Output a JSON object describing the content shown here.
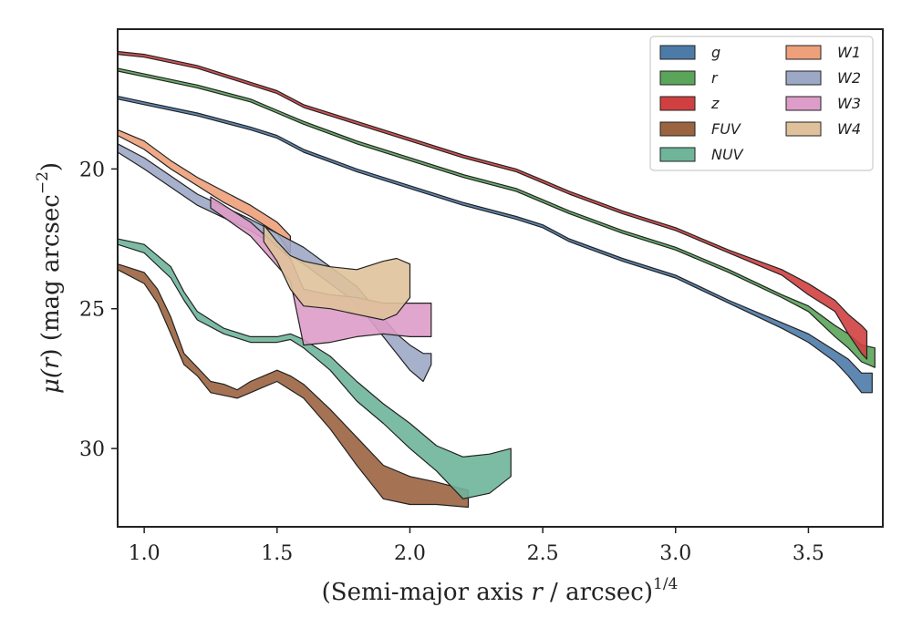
{
  "chart_data": {
    "type": "area",
    "xlabel": "(Semi-major axis r / arcsec)",
    "xlabel_parts": {
      "pre": "(Semi-major axis ",
      "var": "r",
      "post": " / arcsec)",
      "sup": "1/4"
    },
    "ylabel_parts": {
      "pre": "μ(",
      "var": "r",
      "post": ") (mag arcsec",
      "sup": "−2",
      "end": ")"
    },
    "xlim": [
      0.9,
      3.78
    ],
    "ylim": [
      32.8,
      15.0
    ],
    "y_inverted": true,
    "xticks": [
      {
        "value": 1.0,
        "label": "1.0"
      },
      {
        "value": 1.5,
        "label": "1.5"
      },
      {
        "value": 2.0,
        "label": "2.0"
      },
      {
        "value": 2.5,
        "label": "2.5"
      },
      {
        "value": 3.0,
        "label": "3.0"
      },
      {
        "value": 3.5,
        "label": "3.5"
      }
    ],
    "yticks": [
      {
        "value": 20,
        "label": "20"
      },
      {
        "value": 25,
        "label": "25"
      },
      {
        "value": 30,
        "label": "30"
      }
    ],
    "grid": false,
    "legend_position": "top-right",
    "legend_columns": 2,
    "series": [
      {
        "name": "g",
        "color": "#4c7ba8",
        "points": [
          [
            0.9,
            17.4,
            17.5
          ],
          [
            1.0,
            17.6,
            17.7
          ],
          [
            1.2,
            18.0,
            18.1
          ],
          [
            1.4,
            18.5,
            18.6
          ],
          [
            1.5,
            18.8,
            18.9
          ],
          [
            1.6,
            19.3,
            19.4
          ],
          [
            1.8,
            20.0,
            20.1
          ],
          [
            2.0,
            20.6,
            20.7
          ],
          [
            2.2,
            21.2,
            21.3
          ],
          [
            2.4,
            21.7,
            21.8
          ],
          [
            2.5,
            22.0,
            22.1
          ],
          [
            2.6,
            22.5,
            22.6
          ],
          [
            2.8,
            23.2,
            23.3
          ],
          [
            3.0,
            23.8,
            23.9
          ],
          [
            3.2,
            24.7,
            24.8
          ],
          [
            3.4,
            25.5,
            25.7
          ],
          [
            3.5,
            25.9,
            26.2
          ],
          [
            3.6,
            26.5,
            26.9
          ],
          [
            3.65,
            26.8,
            27.4
          ],
          [
            3.7,
            27.3,
            28.0
          ],
          [
            3.74,
            27.3,
            28.0
          ]
        ]
      },
      {
        "name": "r",
        "color": "#5aa55a",
        "points": [
          [
            0.9,
            16.4,
            16.5
          ],
          [
            1.0,
            16.6,
            16.7
          ],
          [
            1.2,
            17.0,
            17.1
          ],
          [
            1.4,
            17.5,
            17.6
          ],
          [
            1.5,
            17.9,
            18.0
          ],
          [
            1.6,
            18.3,
            18.4
          ],
          [
            1.8,
            19.0,
            19.1
          ],
          [
            2.0,
            19.6,
            19.7
          ],
          [
            2.2,
            20.2,
            20.3
          ],
          [
            2.4,
            20.7,
            20.8
          ],
          [
            2.5,
            21.1,
            21.2
          ],
          [
            2.6,
            21.5,
            21.6
          ],
          [
            2.8,
            22.2,
            22.3
          ],
          [
            3.0,
            22.8,
            22.9
          ],
          [
            3.2,
            23.6,
            23.7
          ],
          [
            3.4,
            24.5,
            24.6
          ],
          [
            3.5,
            24.9,
            25.1
          ],
          [
            3.6,
            25.6,
            26.0
          ],
          [
            3.65,
            25.9,
            26.4
          ],
          [
            3.7,
            26.3,
            26.9
          ],
          [
            3.75,
            26.4,
            27.1
          ]
        ]
      },
      {
        "name": "z",
        "color": "#d04040",
        "points": [
          [
            0.9,
            15.8,
            15.9
          ],
          [
            1.0,
            15.9,
            16.0
          ],
          [
            1.2,
            16.3,
            16.4
          ],
          [
            1.4,
            16.9,
            17.0
          ],
          [
            1.5,
            17.2,
            17.3
          ],
          [
            1.6,
            17.7,
            17.8
          ],
          [
            1.8,
            18.3,
            18.4
          ],
          [
            2.0,
            18.9,
            19.0
          ],
          [
            2.2,
            19.5,
            19.6
          ],
          [
            2.4,
            20.0,
            20.1
          ],
          [
            2.5,
            20.4,
            20.5
          ],
          [
            2.6,
            20.8,
            20.9
          ],
          [
            2.8,
            21.5,
            21.6
          ],
          [
            3.0,
            22.1,
            22.2
          ],
          [
            3.2,
            22.9,
            23.0
          ],
          [
            3.4,
            23.6,
            23.8
          ],
          [
            3.5,
            24.1,
            24.5
          ],
          [
            3.6,
            24.7,
            25.1
          ],
          [
            3.65,
            25.2,
            25.9
          ],
          [
            3.7,
            25.6,
            26.6
          ],
          [
            3.72,
            25.8,
            26.8
          ]
        ]
      },
      {
        "name": "FUV",
        "color": "#9b6440",
        "points": [
          [
            0.9,
            23.4,
            23.6
          ],
          [
            1.0,
            23.7,
            24.1
          ],
          [
            1.05,
            24.3,
            24.8
          ],
          [
            1.1,
            25.3,
            25.9
          ],
          [
            1.15,
            26.6,
            27.0
          ],
          [
            1.2,
            27.1,
            27.4
          ],
          [
            1.25,
            27.6,
            28.0
          ],
          [
            1.3,
            27.7,
            28.1
          ],
          [
            1.35,
            27.9,
            28.2
          ],
          [
            1.4,
            27.6,
            28.0
          ],
          [
            1.45,
            27.4,
            27.8
          ],
          [
            1.5,
            27.2,
            27.6
          ],
          [
            1.55,
            27.4,
            27.9
          ],
          [
            1.6,
            27.7,
            28.2
          ],
          [
            1.7,
            28.6,
            29.3
          ],
          [
            1.8,
            29.6,
            30.6
          ],
          [
            1.9,
            30.6,
            31.8
          ],
          [
            2.0,
            31.0,
            32.0
          ],
          [
            2.1,
            31.2,
            32.0
          ],
          [
            2.22,
            31.5,
            32.1
          ]
        ]
      },
      {
        "name": "NUV",
        "color": "#6fb59a",
        "points": [
          [
            0.9,
            22.5,
            22.7
          ],
          [
            1.0,
            22.7,
            23.0
          ],
          [
            1.1,
            23.5,
            23.9
          ],
          [
            1.15,
            24.4,
            24.7
          ],
          [
            1.2,
            25.1,
            25.4
          ],
          [
            1.3,
            25.7,
            25.9
          ],
          [
            1.4,
            26.0,
            26.2
          ],
          [
            1.5,
            26.0,
            26.2
          ],
          [
            1.55,
            25.9,
            26.1
          ],
          [
            1.6,
            26.1,
            26.4
          ],
          [
            1.7,
            26.7,
            27.2
          ],
          [
            1.8,
            27.6,
            28.3
          ],
          [
            1.9,
            28.4,
            29.1
          ],
          [
            2.0,
            29.1,
            30.0
          ],
          [
            2.1,
            29.9,
            30.8
          ],
          [
            2.2,
            30.3,
            31.8
          ],
          [
            2.3,
            30.2,
            31.6
          ],
          [
            2.38,
            30.0,
            31.0
          ]
        ]
      },
      {
        "name": "W1",
        "color": "#eda07a",
        "points": [
          [
            0.9,
            18.6,
            18.8
          ],
          [
            1.0,
            19.0,
            19.3
          ],
          [
            1.1,
            19.7,
            20.0
          ],
          [
            1.2,
            20.3,
            20.6
          ],
          [
            1.3,
            20.8,
            21.2
          ],
          [
            1.4,
            21.3,
            21.7
          ],
          [
            1.5,
            21.9,
            22.3
          ],
          [
            1.55,
            22.4,
            23.0
          ]
        ]
      },
      {
        "name": "W2",
        "color": "#9da8c7",
        "points": [
          [
            0.9,
            19.1,
            19.4
          ],
          [
            1.0,
            19.6,
            20.0
          ],
          [
            1.2,
            20.9,
            21.3
          ],
          [
            1.4,
            21.8,
            22.2
          ],
          [
            1.6,
            22.8,
            23.4
          ],
          [
            1.8,
            24.2,
            24.8
          ],
          [
            1.95,
            25.9,
            26.6
          ],
          [
            2.0,
            26.3,
            27.2
          ],
          [
            2.05,
            26.6,
            27.6
          ],
          [
            2.08,
            26.6,
            27.0
          ]
        ]
      },
      {
        "name": "W3",
        "color": "#de9cc8",
        "points": [
          [
            1.25,
            21.0,
            21.4
          ],
          [
            1.4,
            21.9,
            22.4
          ],
          [
            1.55,
            23.2,
            24.0
          ],
          [
            1.6,
            24.3,
            26.3
          ],
          [
            1.7,
            24.5,
            26.2
          ],
          [
            1.8,
            24.6,
            26.0
          ],
          [
            1.9,
            24.8,
            25.9
          ],
          [
            2.0,
            24.8,
            26.0
          ],
          [
            2.08,
            24.8,
            26.0
          ]
        ]
      },
      {
        "name": "W4",
        "color": "#dfc29b",
        "points": [
          [
            1.45,
            22.0,
            22.6
          ],
          [
            1.5,
            22.6,
            23.3
          ],
          [
            1.55,
            23.1,
            24.3
          ],
          [
            1.6,
            23.3,
            24.9
          ],
          [
            1.7,
            23.5,
            25.0
          ],
          [
            1.8,
            23.6,
            25.2
          ],
          [
            1.9,
            23.3,
            25.4
          ],
          [
            1.95,
            23.2,
            25.2
          ],
          [
            2.0,
            23.4,
            24.6
          ]
        ]
      }
    ]
  }
}
